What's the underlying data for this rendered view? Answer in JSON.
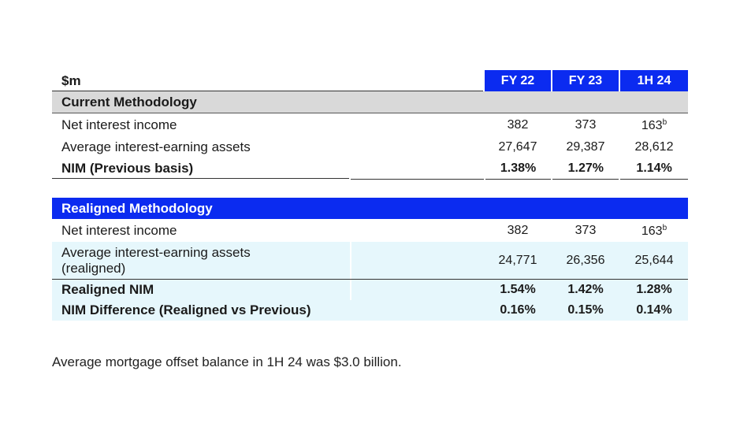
{
  "header": {
    "unit": "$m",
    "columns": [
      "FY 22",
      "FY 23",
      "1H 24"
    ]
  },
  "current": {
    "title": "Current Methodology",
    "rows": [
      {
        "label": "Net interest income",
        "values": [
          "382",
          "373",
          "163"
        ],
        "sup": "b"
      },
      {
        "label": "Average interest-earning assets",
        "values": [
          "27,647",
          "29,387",
          "28,612"
        ]
      },
      {
        "label": "NIM (Previous basis)",
        "values": [
          "1.38%",
          "1.27%",
          "1.14%"
        ]
      }
    ]
  },
  "realigned": {
    "title": "Realigned Methodology",
    "rows": [
      {
        "label": "Net interest income",
        "values": [
          "382",
          "373",
          "163"
        ],
        "sup": "b"
      },
      {
        "label_line1": "Average interest-earning assets",
        "label_line2": "(realigned)",
        "values": [
          "24,771",
          "26,356",
          "25,644"
        ]
      },
      {
        "label": "Realigned NIM",
        "values": [
          "1.54%",
          "1.42%",
          "1.28%"
        ]
      },
      {
        "label": "NIM Difference (Realigned vs Previous)",
        "values": [
          "0.16%",
          "0.15%",
          "0.14%"
        ]
      }
    ]
  },
  "footnote": "Average mortgage offset balance in 1H 24 was $3.0 billion.",
  "colors": {
    "accent_blue": "#0b2bf0",
    "grey_band": "#d9d9d9",
    "light_blue": "#e6f7fc"
  }
}
